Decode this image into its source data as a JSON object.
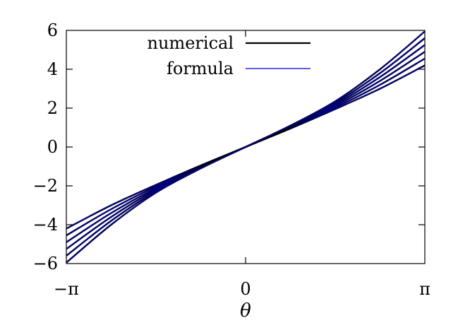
{
  "chart_data": {
    "type": "line",
    "title": "",
    "xlabel": "θ",
    "ylabel": "",
    "xlim": [
      -3.14159,
      3.14159
    ],
    "ylim": [
      -6,
      6
    ],
    "xticks": [
      {
        "value": -3.14159,
        "label": "−π"
      },
      {
        "value": 0,
        "label": "0"
      },
      {
        "value": 3.14159,
        "label": "π"
      }
    ],
    "yticks": [
      {
        "value": -6,
        "label": "−6"
      },
      {
        "value": -4,
        "label": "−4"
      },
      {
        "value": -2,
        "label": "−2"
      },
      {
        "value": 0,
        "label": "0"
      },
      {
        "value": 2,
        "label": "2"
      },
      {
        "value": 4,
        "label": "4"
      },
      {
        "value": 6,
        "label": "6"
      }
    ],
    "grid": false,
    "legend_position": "top",
    "legend": [
      {
        "label": "numerical",
        "color": "#000000"
      },
      {
        "label": "formula",
        "color": "#0000cc"
      }
    ],
    "x": [
      -3.14159,
      -2.35619,
      -1.5708,
      -0.7854,
      0,
      0.7854,
      1.5708,
      2.35619,
      3.14159
    ],
    "series": [
      {
        "values": [
          -4.2,
          -3.0,
          -1.95,
          -0.95,
          0,
          0.95,
          1.95,
          3.0,
          4.2
        ]
      },
      {
        "values": [
          -4.55,
          -3.2,
          -2.03,
          -0.98,
          0,
          0.98,
          2.03,
          3.2,
          4.55
        ]
      },
      {
        "values": [
          -4.9,
          -3.4,
          -2.11,
          -1.01,
          0,
          1.01,
          2.11,
          3.4,
          4.9
        ]
      },
      {
        "values": [
          -5.25,
          -3.6,
          -2.19,
          -1.04,
          0,
          1.04,
          2.19,
          3.6,
          5.25
        ]
      },
      {
        "values": [
          -5.6,
          -3.8,
          -2.27,
          -1.07,
          0,
          1.07,
          2.27,
          3.8,
          5.6
        ]
      },
      {
        "values": [
          -5.95,
          -4.0,
          -2.35,
          -1.1,
          0,
          1.1,
          2.35,
          4.0,
          5.95
        ]
      }
    ],
    "colors": {
      "numerical": "#000000",
      "formula": "#0000cc"
    }
  }
}
